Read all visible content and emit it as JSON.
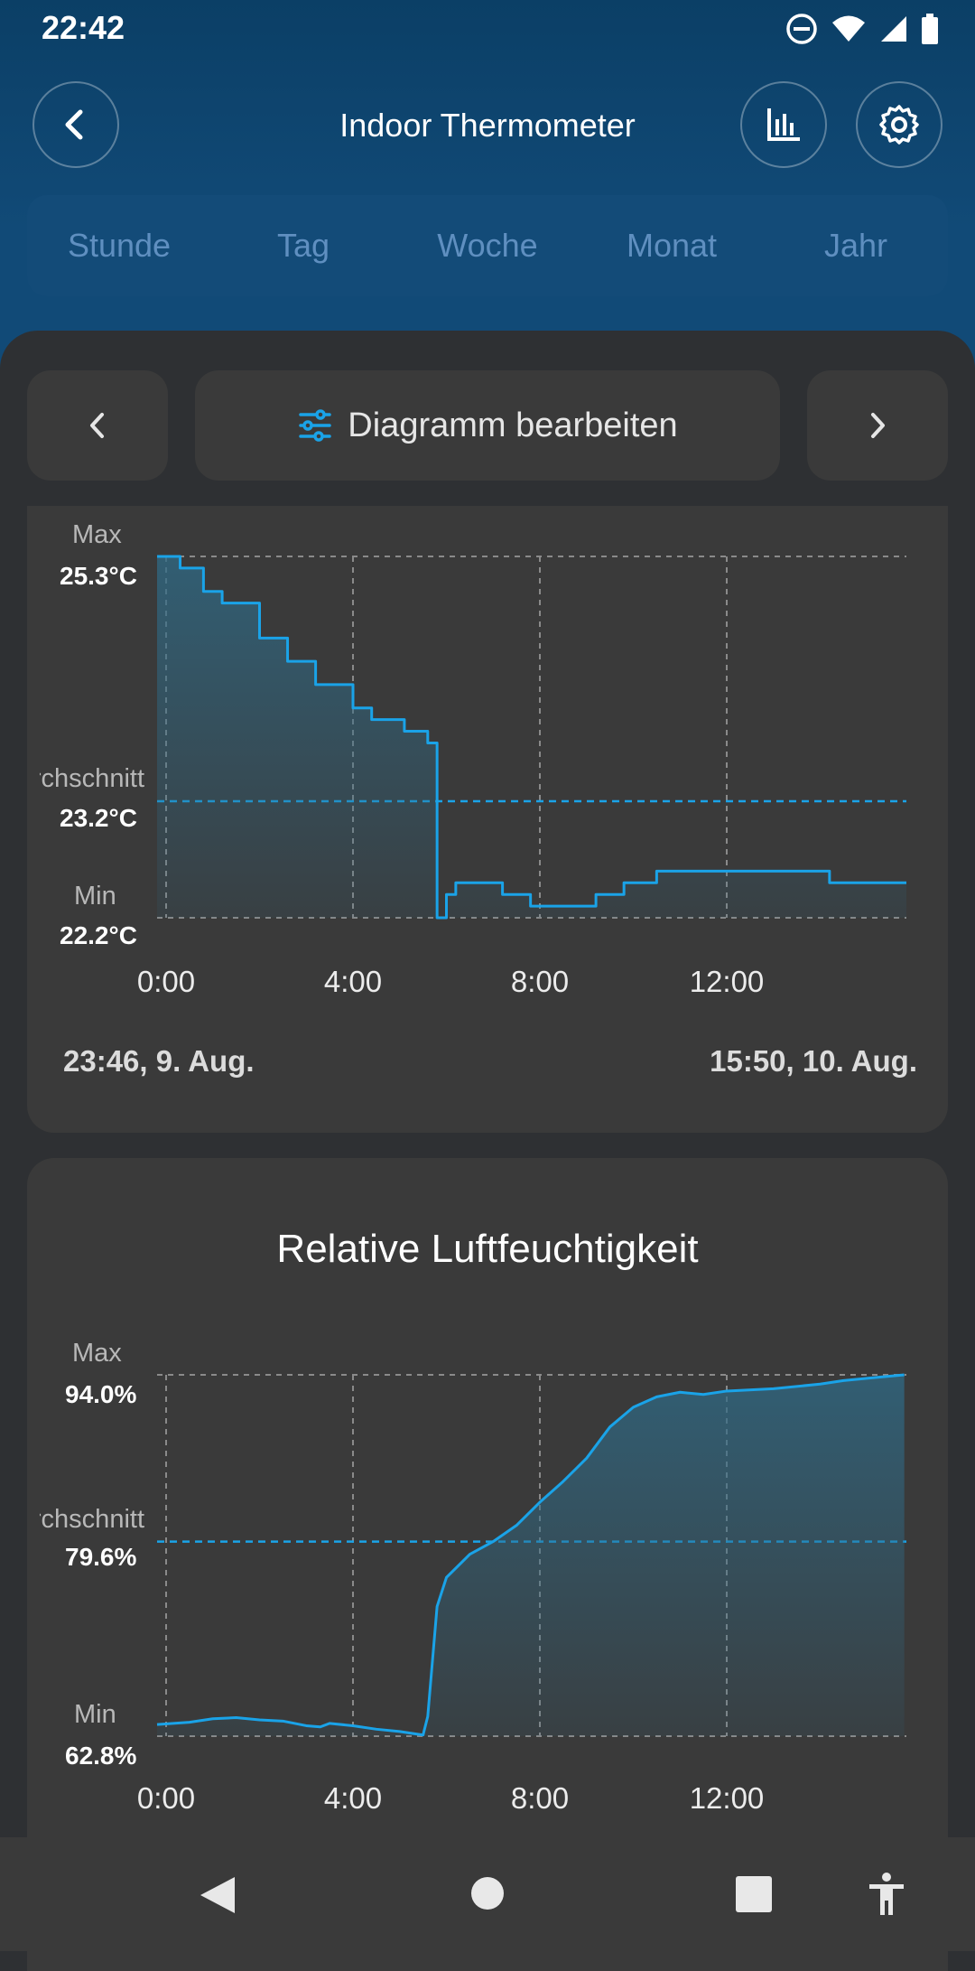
{
  "status_bar": {
    "time": "22:42"
  },
  "header": {
    "title": "Indoor Thermometer"
  },
  "periods": [
    "Stunde",
    "Tag",
    "Woche",
    "Monat",
    "Jahr"
  ],
  "toolbar": {
    "edit_label": "Diagramm bearbeiten"
  },
  "temperature_chart": {
    "max_label": "Max",
    "max_value": "25.3°C",
    "avg_label": "Durchschnitt",
    "avg_value": "23.2°C",
    "min_label": "Min",
    "min_value": "22.2°C",
    "x_ticks": [
      "0:00",
      "4:00",
      "8:00",
      "12:00"
    ],
    "start": "23:46,  9. Aug.",
    "end": "15:50,  10. Aug."
  },
  "humidity_chart": {
    "title": "Relative Luftfeuchtigkeit",
    "max_label": "Max",
    "max_value": "94.0%",
    "avg_label": "Durchschnitt",
    "avg_value": "79.6%",
    "min_label": "Min",
    "min_value": "62.8%",
    "x_ticks": [
      "0:00",
      "4:00",
      "8:00",
      "12:00"
    ]
  },
  "colors": {
    "accent": "#1aa3e8",
    "header": "#0e4470",
    "card": "#3a3a3a",
    "period_text": "#5f8fc0"
  },
  "chart_data": [
    {
      "type": "line",
      "series": [
        {
          "x": [
            -0.2,
            0,
            0.3,
            0.8,
            1.2,
            2,
            2.6,
            3.2,
            4,
            4.4,
            5.1,
            5.6,
            5.8,
            6.0,
            6.2,
            6.5,
            7.2,
            7.8,
            8.3,
            8.6,
            9.2,
            9.8,
            10.5,
            11.5,
            12.5,
            13.5,
            14.2,
            15.8
          ],
          "y": [
            25.3,
            25.3,
            25.2,
            25.0,
            24.9,
            24.6,
            24.4,
            24.2,
            24.0,
            23.9,
            23.8,
            23.7,
            22.2,
            22.4,
            22.5,
            22.5,
            22.4,
            22.3,
            22.3,
            22.3,
            22.4,
            22.5,
            22.6,
            22.6,
            22.6,
            22.6,
            22.5,
            22.5
          ]
        }
      ],
      "xlabel": "",
      "ylabel": "",
      "ylim": [
        22.2,
        25.3
      ],
      "average": 23.2,
      "x_ticks": [
        "0:00",
        "4:00",
        "8:00",
        "12:00"
      ]
    },
    {
      "type": "line",
      "title": "Relative Luftfeuchtigkeit",
      "series": [
        {
          "x": [
            -0.2,
            0.5,
            1.0,
            1.5,
            2.0,
            2.5,
            3.0,
            3.3,
            3.5,
            4.0,
            4.5,
            5.0,
            5.5,
            5.6,
            5.8,
            6.0,
            6.5,
            7.0,
            7.5,
            8.0,
            8.5,
            9.0,
            9.5,
            10.0,
            10.5,
            11.0,
            11.5,
            12.0,
            13.0,
            14.0,
            14.5,
            15.0,
            15.8
          ],
          "y": [
            63.8,
            64.0,
            64.3,
            64.4,
            64.2,
            64.1,
            63.7,
            63.6,
            63.9,
            63.7,
            63.4,
            63.2,
            62.9,
            64.5,
            74.0,
            76.5,
            78.5,
            79.6,
            81.0,
            83.0,
            84.8,
            86.8,
            89.5,
            91.2,
            92.1,
            92.5,
            92.3,
            92.6,
            92.8,
            93.2,
            93.5,
            93.7,
            94.0
          ]
        }
      ],
      "xlabel": "",
      "ylabel": "",
      "ylim": [
        62.8,
        94.0
      ],
      "average": 79.6,
      "x_ticks": [
        "0:00",
        "4:00",
        "8:00",
        "12:00"
      ]
    }
  ]
}
